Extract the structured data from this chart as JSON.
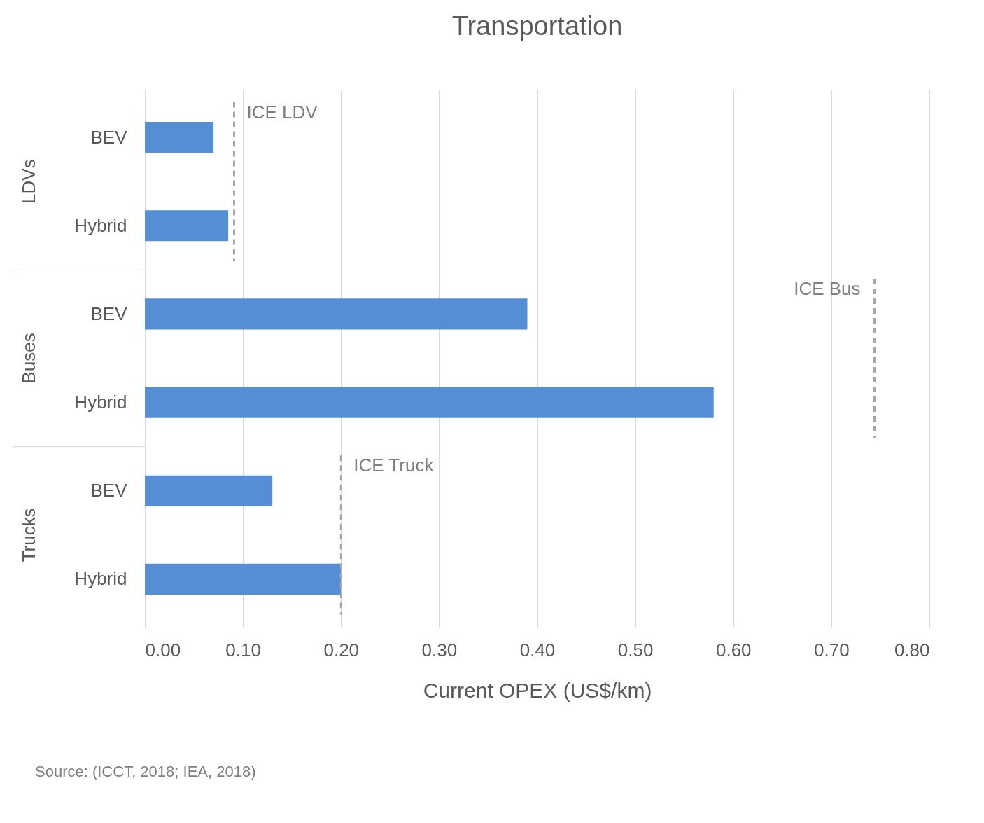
{
  "chart_data": {
    "type": "bar",
    "orientation": "horizontal",
    "title": "Transportation",
    "xlabel": "Current OPEX (US$/km)",
    "categories": [
      "BEV",
      "Hybrid",
      "BEV",
      "Hybrid",
      "BEV",
      "Hybrid"
    ],
    "values": [
      0.07,
      0.085,
      0.39,
      0.58,
      0.13,
      0.2
    ],
    "color": "#558ed5",
    "xlim": [
      0,
      0.8
    ],
    "xticks": [
      {
        "value": 0,
        "label": "0.00"
      },
      {
        "value": 0.1,
        "label": "0.10"
      },
      {
        "value": 0.2,
        "label": "0.20"
      },
      {
        "value": 0.3,
        "label": "0.30"
      },
      {
        "value": 0.4,
        "label": "0.40"
      },
      {
        "value": 0.5,
        "label": "0.50"
      },
      {
        "value": 0.6,
        "label": "0.60"
      },
      {
        "value": 0.7,
        "label": "0.70"
      },
      {
        "value": 0.8,
        "label": "0.80"
      }
    ],
    "grid": "x",
    "ref_lines": [
      {
        "axis": "x",
        "value": 0.091,
        "label": "ICE LDV",
        "color": "#a6a6a6",
        "line_style": "dashed"
      },
      {
        "axis": "x",
        "value": 0.744,
        "label": "ICE Bus",
        "color": "#a6a6a6",
        "line_style": "dashed"
      },
      {
        "axis": "x",
        "value": 0.2,
        "label": "ICE Truck",
        "color": "#a6a6a6",
        "line_style": "dashed"
      }
    ],
    "annotations": [
      "LDVs",
      "Buses",
      "Trucks",
      "Source: (ICCT, 2018; IEA, 2018)"
    ]
  }
}
